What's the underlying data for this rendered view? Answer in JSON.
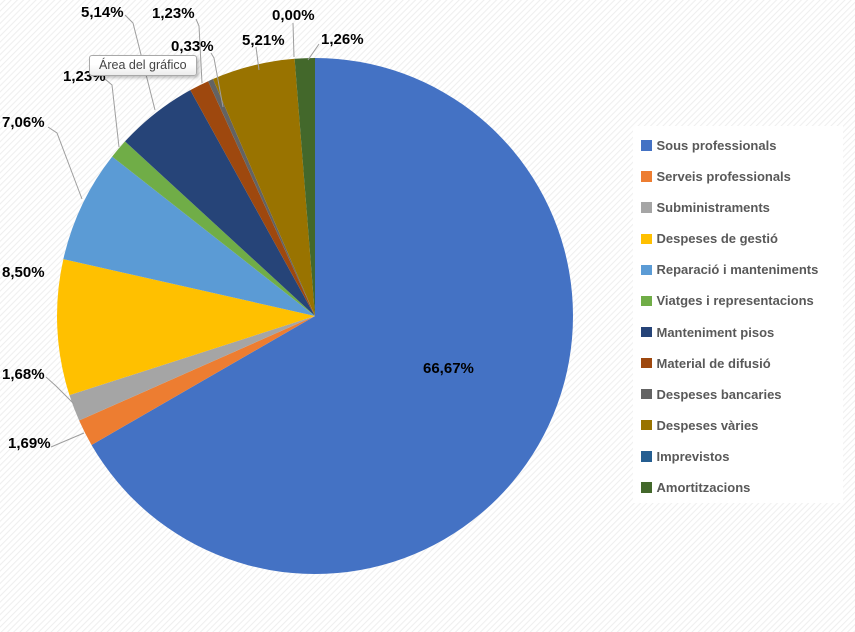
{
  "chart_data": {
    "type": "pie",
    "title": "",
    "legend_position": "right",
    "start_angle_deg": 0,
    "direction": "clockwise",
    "categories": [
      "Sous professionals",
      "Serveis professionals",
      "Subministraments",
      "Despeses de gestió",
      "Reparació i manteniments",
      "Viatges i representacions",
      "Manteniment pisos",
      "Material de difusió",
      "Despeses bancaries",
      "Despeses vàries",
      "Imprevistos",
      "Amortitzacions"
    ],
    "values": [
      66.67,
      1.69,
      1.68,
      8.5,
      7.06,
      1.23,
      5.14,
      1.23,
      0.33,
      5.21,
      0.0,
      1.26
    ],
    "labels": [
      "66,67%",
      "1,69%",
      "1,68%",
      "8,50%",
      "7,06%",
      "1,23%",
      "5,14%",
      "1,23%",
      "0,33%",
      "5,21%",
      "0,00%",
      "1,26%"
    ],
    "colors": [
      "#4472C4",
      "#ED7D31",
      "#A5A5A5",
      "#FFC000",
      "#5B9BD5",
      "#70AD47",
      "#264478",
      "#9E480E",
      "#636363",
      "#997300",
      "#255E91",
      "#43682B"
    ],
    "unit": "%",
    "data_label_color": "#000000",
    "legend_text_color": "#595959",
    "leader_line_color": "#9e9e9e"
  },
  "tooltip": {
    "text": "Área del gráfico"
  }
}
